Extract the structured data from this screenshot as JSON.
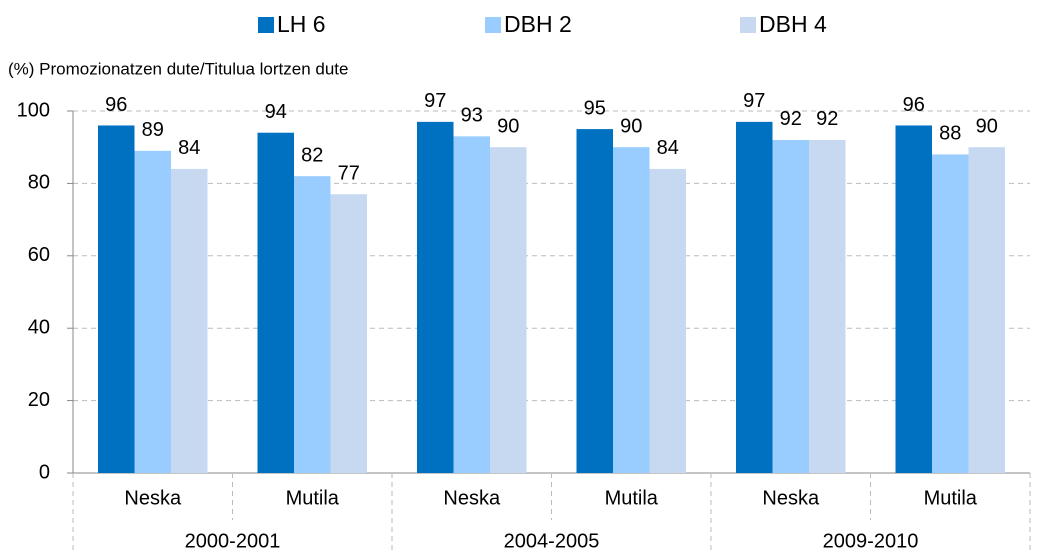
{
  "chart_data": {
    "type": "bar",
    "y_label": "(%) Promozionatzen dute/Titulua lortzen dute",
    "categories": [
      "Neska",
      "Mutila",
      "Neska",
      "Mutila",
      "Neska",
      "Mutila"
    ],
    "groups": [
      "2000-2001",
      "2004-2005",
      "2009-2010"
    ],
    "series": [
      {
        "name": "LH 6",
        "color": "#0070c0",
        "values": [
          96,
          94,
          97,
          95,
          97,
          96
        ]
      },
      {
        "name": "DBH 2",
        "color": "#99ccff",
        "values": [
          89,
          82,
          93,
          90,
          92,
          88
        ]
      },
      {
        "name": "DBH 4",
        "color": "#c6d9f1",
        "values": [
          84,
          77,
          90,
          84,
          92,
          90
        ]
      }
    ],
    "ylim": [
      0,
      100
    ],
    "yticks": [
      0,
      20,
      40,
      60,
      80,
      100
    ],
    "grid": true,
    "legend": "top"
  }
}
